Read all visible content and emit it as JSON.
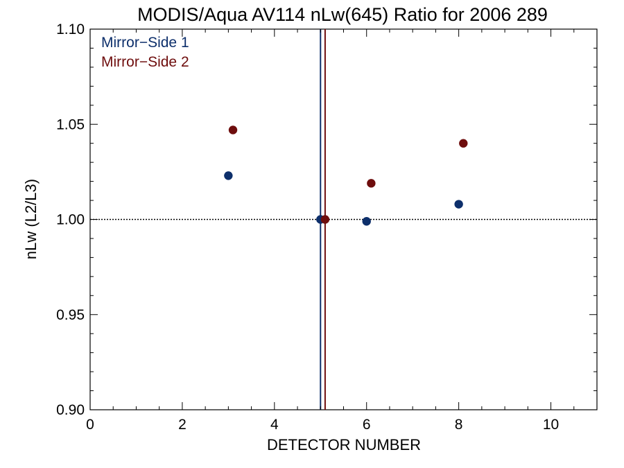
{
  "chart_data": {
    "type": "scatter",
    "title": "MODIS/Aqua AV114 nLw(645) Ratio for 2006 289",
    "xlabel": "DETECTOR NUMBER",
    "ylabel": "nLw (L2/L3)",
    "xlim": [
      0,
      11
    ],
    "ylim": [
      0.9,
      1.1
    ],
    "xticks": [
      0,
      2,
      4,
      6,
      8,
      10
    ],
    "xtick_labels": [
      "0",
      "2",
      "4",
      "6",
      "8",
      "10"
    ],
    "yticks": [
      0.9,
      0.95,
      1.0,
      1.05,
      1.1
    ],
    "ytick_labels": [
      "0.90",
      "0.95",
      "1.00",
      "1.05",
      "1.10"
    ],
    "reference_line_y": 1.0,
    "grid": false,
    "legend_position": "top-left",
    "series": [
      {
        "name": "Mirror−Side 1",
        "color": "#0d2f6b",
        "x": [
          3.0,
          5.0,
          6.0,
          8.0
        ],
        "y": [
          1.023,
          1.0,
          0.999,
          1.008
        ],
        "vline_x": 5.0
      },
      {
        "name": "Mirror−Side 2",
        "color": "#6e0d0d",
        "x": [
          3.1,
          5.1,
          6.1,
          8.1
        ],
        "y": [
          1.047,
          1.0,
          1.019,
          1.04
        ],
        "vline_x": 5.1
      }
    ]
  }
}
